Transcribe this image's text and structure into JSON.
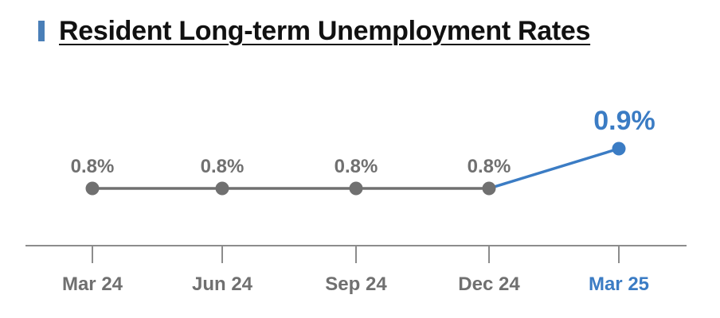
{
  "title": "Resident Long-term Unemployment Rates",
  "colors": {
    "past": "#707070",
    "latest": "#3b7cc4",
    "axis": "#8c8c8c",
    "title_bar": "#4a7fb8"
  },
  "chart_data": {
    "type": "line",
    "title": "Resident Long-term Unemployment Rates",
    "categories": [
      "Mar 24",
      "Jun 24",
      "Sep 24",
      "Dec 24",
      "Mar 25"
    ],
    "values": [
      0.8,
      0.8,
      0.8,
      0.8,
      0.9
    ],
    "value_labels": [
      "0.8%",
      "0.8%",
      "0.8%",
      "0.8%",
      "0.9%"
    ],
    "unit": "%",
    "highlight_last": true,
    "grid": false,
    "legend": "none"
  }
}
